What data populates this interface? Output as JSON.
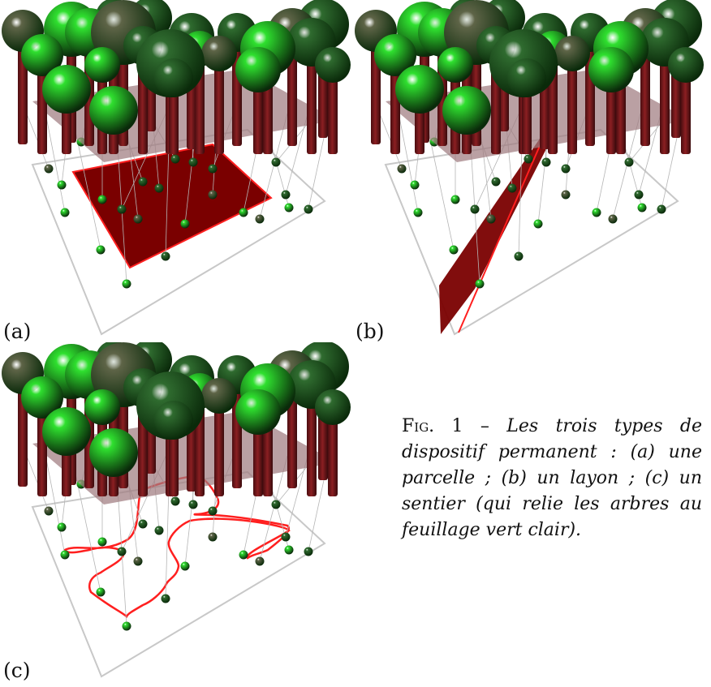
{
  "panels": [
    {
      "label": "(a)",
      "type": "parcelle"
    },
    {
      "label": "(b)",
      "type": "layon"
    },
    {
      "label": "(c)",
      "type": "sentier"
    }
  ],
  "caption": {
    "fig_label": "Fig. 1 –",
    "text": "Les trois types de dispositif permanent : (a) une parcelle ; (b) un layon ; (c) un sentier (qui relie les arbres au feuillage vert clair)."
  },
  "colors": {
    "light_green": "#2fe02f",
    "dark_green": "#2f6b2f",
    "olive": "#5e6447",
    "trunk": "#8b1f22",
    "canopy_plane": "#a07c80",
    "device_fill": "#7a0000",
    "device_line": "#ff1f1f",
    "ground_frame": "#c8c8c8"
  }
}
